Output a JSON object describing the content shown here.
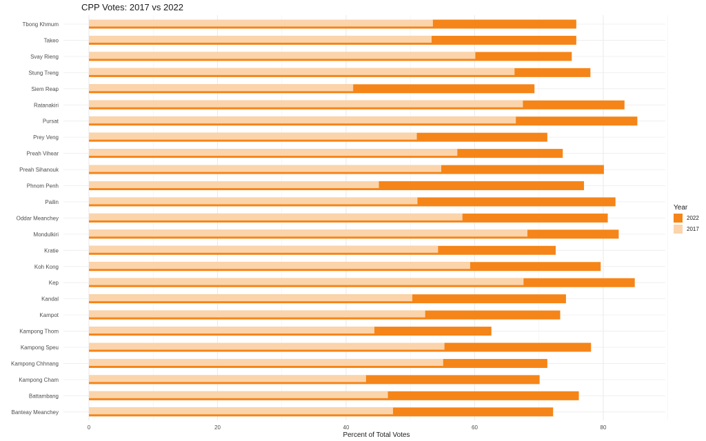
{
  "chart_data": {
    "type": "bar",
    "title": "CPP Votes: 2017 vs 2022",
    "xlabel": "Percent of Total Votes",
    "ylabel": "",
    "xlim": [
      0,
      90
    ],
    "x_ticks": [
      0,
      20,
      40,
      60,
      80
    ],
    "grid": true,
    "legend_title": "Year",
    "legend_position": "right",
    "categories": [
      "Tbong Khmum",
      "Takeo",
      "Svay Rieng",
      "Stung Treng",
      "Siem Reap",
      "Ratanakiri",
      "Pursat",
      "Prey Veng",
      "Preah Vihear",
      "Preah Sihanouk",
      "Phnom Penh",
      "Pailin",
      "Oddar Meanchey",
      "Mondulkiri",
      "Kratie",
      "Koh Kong",
      "Kep",
      "Kandal",
      "Kampot",
      "Kampong Thom",
      "Kampong Speu",
      "Kampong Chhnang",
      "Kampong Cham",
      "Battambang",
      "Banteay Meanchey"
    ],
    "series": [
      {
        "name": "2022",
        "color": "#f58518",
        "values": [
          75.8,
          75.8,
          75.1,
          78.0,
          69.3,
          83.3,
          85.3,
          71.3,
          73.7,
          80.1,
          77.0,
          81.9,
          80.7,
          82.4,
          72.6,
          79.6,
          84.9,
          74.2,
          73.3,
          62.6,
          78.1,
          71.3,
          70.1,
          76.2,
          72.2
        ]
      },
      {
        "name": "2017",
        "color": "#fbd4ab",
        "values": [
          53.5,
          53.3,
          60.1,
          66.2,
          41.1,
          67.5,
          66.4,
          51.0,
          57.3,
          54.8,
          45.1,
          51.1,
          58.1,
          68.2,
          54.3,
          59.3,
          67.6,
          50.3,
          52.3,
          44.4,
          55.3,
          55.1,
          43.1,
          46.5,
          47.3
        ]
      }
    ]
  }
}
